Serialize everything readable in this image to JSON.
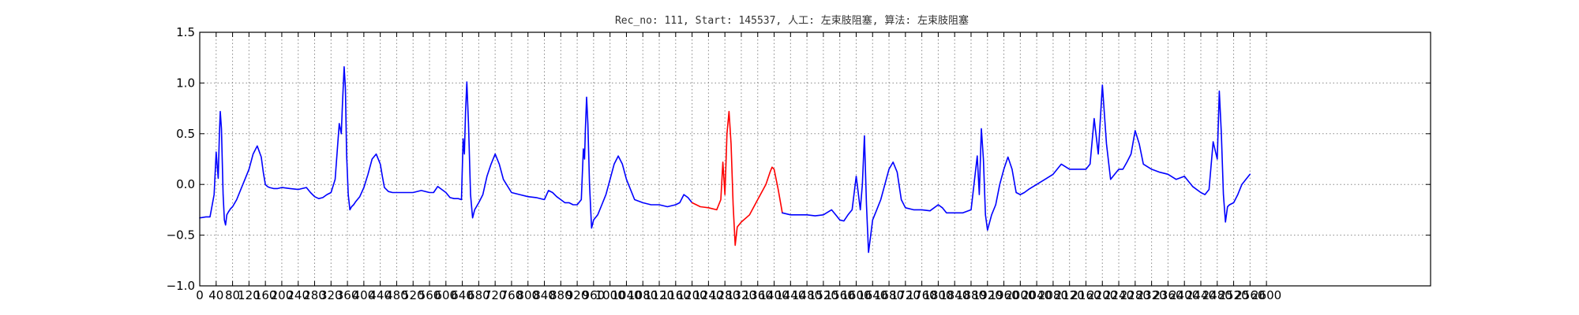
{
  "chart_data": {
    "type": "line",
    "title": "Rec_no: 111, Start: 145537, 人工: 左束肢阻塞, 算法: 左束肢阻塞",
    "xlabel": "",
    "ylabel": "",
    "xlim": [
      0,
      3000
    ],
    "ylim": [
      -1.0,
      1.5
    ],
    "grid": true,
    "y_ticks": [
      -1.0,
      -0.5,
      0.0,
      0.5,
      1.0,
      1.5
    ],
    "y_tick_labels": [
      "−1.0",
      "−0.5",
      "0.0",
      "0.5",
      "1.0",
      "1.5"
    ],
    "x_ticks": [
      0,
      40,
      80,
      120,
      160,
      200,
      240,
      280,
      320,
      360,
      400,
      440,
      480,
      520,
      560,
      600,
      640,
      680,
      720,
      760,
      800,
      840,
      880,
      920,
      960,
      1000,
      1040,
      1080,
      1120,
      1160,
      1200,
      1240,
      1280,
      1320,
      1360,
      1400,
      1440,
      1480,
      1520,
      1560,
      1600,
      1640,
      1680,
      1720,
      1760,
      1800,
      1840,
      1880,
      1920,
      1960,
      2000,
      2040,
      2080,
      2120,
      2160,
      2200,
      2240,
      2280,
      2320,
      2360,
      2400,
      2440,
      2480,
      2520,
      2560,
      2600
    ],
    "series": [
      {
        "color": "#0000ff",
        "x": [
          0,
          15,
          25,
          35,
          40,
          45,
          48,
          50,
          53,
          57,
          60,
          63,
          66,
          70,
          75,
          80,
          90,
          100,
          110,
          120,
          130,
          140,
          150,
          155,
          160,
          165,
          170,
          180,
          190,
          200,
          220,
          240,
          260,
          270,
          280,
          290,
          300,
          310,
          320,
          330,
          340,
          345,
          348,
          352,
          355,
          358,
          362,
          366,
          370,
          375,
          380,
          390,
          400,
          410,
          420,
          430,
          440,
          445,
          450,
          455,
          460,
          470,
          480,
          490,
          500,
          520,
          540,
          560,
          570,
          580,
          590,
          600,
          610,
          620,
          630,
          638,
          642,
          645,
          648,
          651,
          655,
          660,
          665,
          670,
          680,
          690,
          700,
          710,
          720,
          730,
          740,
          760,
          780,
          800,
          820,
          840,
          850,
          860,
          870,
          880,
          890,
          900,
          910,
          920,
          930,
          935,
          938,
          940,
          943,
          946,
          950,
          955,
          960,
          970,
          980,
          990,
          1000,
          1010,
          1020,
          1030,
          1040,
          1060,
          1080,
          1100,
          1120,
          1140,
          1160,
          1170,
          1180,
          1190,
          1200
        ],
        "y": [
          -0.33,
          -0.32,
          -0.32,
          -0.1,
          0.32,
          0.06,
          0.5,
          0.72,
          0.55,
          -0.1,
          -0.35,
          -0.4,
          -0.3,
          -0.27,
          -0.24,
          -0.22,
          -0.15,
          -0.05,
          0.05,
          0.15,
          0.3,
          0.38,
          0.27,
          0.12,
          0.0,
          -0.02,
          -0.03,
          -0.04,
          -0.04,
          -0.03,
          -0.04,
          -0.05,
          -0.03,
          -0.08,
          -0.12,
          -0.14,
          -0.13,
          -0.1,
          -0.08,
          0.05,
          0.6,
          0.5,
          0.8,
          1.16,
          0.95,
          0.3,
          -0.1,
          -0.25,
          -0.22,
          -0.2,
          -0.17,
          -0.12,
          -0.03,
          0.1,
          0.25,
          0.3,
          0.2,
          0.08,
          -0.03,
          -0.05,
          -0.07,
          -0.08,
          -0.08,
          -0.08,
          -0.08,
          -0.08,
          -0.06,
          -0.08,
          -0.08,
          -0.02,
          -0.05,
          -0.08,
          -0.13,
          -0.14,
          -0.14,
          -0.15,
          0.45,
          0.3,
          0.72,
          1.01,
          0.6,
          -0.1,
          -0.33,
          -0.25,
          -0.18,
          -0.1,
          0.08,
          0.2,
          0.3,
          0.2,
          0.05,
          -0.08,
          -0.1,
          -0.12,
          -0.13,
          -0.15,
          -0.06,
          -0.08,
          -0.12,
          -0.15,
          -0.18,
          -0.18,
          -0.2,
          -0.2,
          -0.15,
          0.35,
          0.25,
          0.55,
          0.86,
          0.6,
          0.0,
          -0.43,
          -0.35,
          -0.3,
          -0.2,
          -0.1,
          0.05,
          0.2,
          0.28,
          0.2,
          0.05,
          -0.15,
          -0.18,
          -0.2,
          -0.2,
          -0.22,
          -0.2,
          -0.18,
          -0.1,
          -0.13,
          -0.18
        ]
      },
      {
        "color": "#ff0000",
        "x": [
          1200,
          1220,
          1240,
          1260,
          1270,
          1275,
          1280,
          1285,
          1290,
          1295,
          1300,
          1305,
          1310,
          1320,
          1340,
          1360,
          1380,
          1390,
          1395,
          1400,
          1410,
          1420
        ],
        "y": [
          -0.18,
          -0.22,
          -0.23,
          -0.25,
          -0.15,
          0.22,
          -0.1,
          0.5,
          0.72,
          0.4,
          -0.2,
          -0.6,
          -0.42,
          -0.37,
          -0.3,
          -0.15,
          0.0,
          0.12,
          0.17,
          0.15,
          -0.05,
          -0.28
        ]
      },
      {
        "color": "#0000ff",
        "x": [
          1420,
          1440,
          1460,
          1480,
          1500,
          1520,
          1540,
          1550,
          1560,
          1570,
          1580,
          1590,
          1600,
          1610,
          1615,
          1620,
          1625,
          1630,
          1640,
          1650,
          1660,
          1670,
          1680,
          1690,
          1700,
          1710,
          1720,
          1740,
          1760,
          1780,
          1800,
          1810,
          1820,
          1840,
          1860,
          1880,
          1895,
          1900,
          1905,
          1910,
          1915,
          1920,
          1930,
          1940,
          1950,
          1960,
          1970,
          1980,
          1990,
          2000,
          2010,
          2020,
          2040,
          2060,
          2080,
          2100,
          2120,
          2140,
          2160,
          2170,
          2180,
          2190,
          2200,
          2210,
          2220,
          2230,
          2240,
          2250,
          2260,
          2270,
          2280,
          2290,
          2300,
          2320,
          2340,
          2360,
          2380,
          2400,
          2420,
          2440,
          2450,
          2460,
          2470,
          2480,
          2485,
          2490,
          2495,
          2500,
          2505,
          2510,
          2520,
          2530,
          2540,
          2550,
          2560
        ],
        "y": [
          -0.28,
          -0.3,
          -0.3,
          -0.3,
          -0.31,
          -0.3,
          -0.25,
          -0.3,
          -0.35,
          -0.36,
          -0.3,
          -0.25,
          0.08,
          -0.25,
          0.0,
          0.48,
          -0.2,
          -0.67,
          -0.35,
          -0.25,
          -0.15,
          0.0,
          0.15,
          0.22,
          0.12,
          -0.15,
          -0.23,
          -0.25,
          -0.25,
          -0.26,
          -0.2,
          -0.23,
          -0.28,
          -0.28,
          -0.28,
          -0.25,
          0.28,
          -0.1,
          0.55,
          0.25,
          -0.3,
          -0.45,
          -0.3,
          -0.2,
          0.0,
          0.15,
          0.27,
          0.15,
          -0.08,
          -0.1,
          -0.08,
          -0.05,
          0.0,
          0.05,
          0.1,
          0.2,
          0.15,
          0.15,
          0.15,
          0.2,
          0.65,
          0.3,
          0.98,
          0.4,
          0.05,
          0.1,
          0.15,
          0.15,
          0.22,
          0.3,
          0.53,
          0.4,
          0.2,
          0.15,
          0.12,
          0.1,
          0.05,
          0.08,
          -0.02,
          -0.08,
          -0.1,
          -0.05,
          0.42,
          0.25,
          0.92,
          0.5,
          -0.1,
          -0.37,
          -0.22,
          -0.2,
          -0.18,
          -0.1,
          0.0,
          0.05,
          0.1
        ]
      }
    ]
  }
}
